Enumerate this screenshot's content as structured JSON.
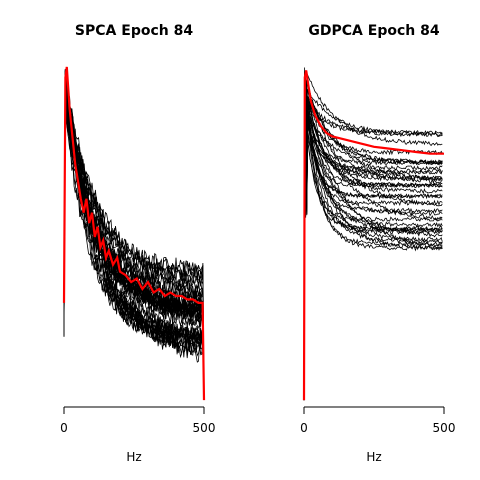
{
  "chart_data": [
    {
      "type": "line",
      "title": "SPCA Epoch 84",
      "xlabel": "Hz",
      "ylabel": "",
      "xlim": [
        0,
        500
      ],
      "x_ticks": [
        "0",
        "500"
      ],
      "y_axis_visible": false,
      "grid": false,
      "legend": "none",
      "n_background_series": 40,
      "background_color": "#000000",
      "highlight_color": "#ff0000",
      "highlight_series_points": [
        [
          0,
          0.3
        ],
        [
          5,
          0.95
        ],
        [
          10,
          0.98
        ],
        [
          15,
          0.92
        ],
        [
          20,
          0.86
        ],
        [
          30,
          0.78
        ],
        [
          40,
          0.7
        ],
        [
          50,
          0.65
        ],
        [
          60,
          0.6
        ],
        [
          70,
          0.56
        ],
        [
          80,
          0.6
        ],
        [
          90,
          0.53
        ],
        [
          100,
          0.56
        ],
        [
          110,
          0.49
        ],
        [
          120,
          0.52
        ],
        [
          130,
          0.46
        ],
        [
          140,
          0.48
        ],
        [
          150,
          0.43
        ],
        [
          160,
          0.45
        ],
        [
          175,
          0.41
        ],
        [
          190,
          0.43
        ],
        [
          200,
          0.39
        ],
        [
          220,
          0.38
        ],
        [
          240,
          0.36
        ],
        [
          260,
          0.37
        ],
        [
          280,
          0.34
        ],
        [
          300,
          0.36
        ],
        [
          320,
          0.33
        ],
        [
          340,
          0.34
        ],
        [
          360,
          0.32
        ],
        [
          380,
          0.33
        ],
        [
          400,
          0.32
        ],
        [
          420,
          0.32
        ],
        [
          440,
          0.31
        ],
        [
          460,
          0.31
        ],
        [
          480,
          0.3
        ],
        [
          495,
          0.3
        ],
        [
          500,
          0.02
        ]
      ]
    },
    {
      "type": "line",
      "title": "GDPCA Epoch 84",
      "xlabel": "Hz",
      "ylabel": "",
      "xlim": [
        0,
        500
      ],
      "x_ticks": [
        "0",
        "500"
      ],
      "y_axis_visible": false,
      "grid": false,
      "legend": "none",
      "n_background_series": 40,
      "background_color": "#000000",
      "highlight_color": "#ff0000",
      "highlight_series_points": [
        [
          0,
          0.02
        ],
        [
          3,
          0.95
        ],
        [
          8,
          0.97
        ],
        [
          15,
          0.93
        ],
        [
          25,
          0.88
        ],
        [
          40,
          0.84
        ],
        [
          60,
          0.81
        ],
        [
          80,
          0.79
        ],
        [
          100,
          0.78
        ],
        [
          150,
          0.77
        ],
        [
          200,
          0.76
        ],
        [
          250,
          0.75
        ],
        [
          300,
          0.745
        ],
        [
          350,
          0.74
        ],
        [
          400,
          0.735
        ],
        [
          450,
          0.73
        ],
        [
          500,
          0.73
        ]
      ]
    }
  ]
}
